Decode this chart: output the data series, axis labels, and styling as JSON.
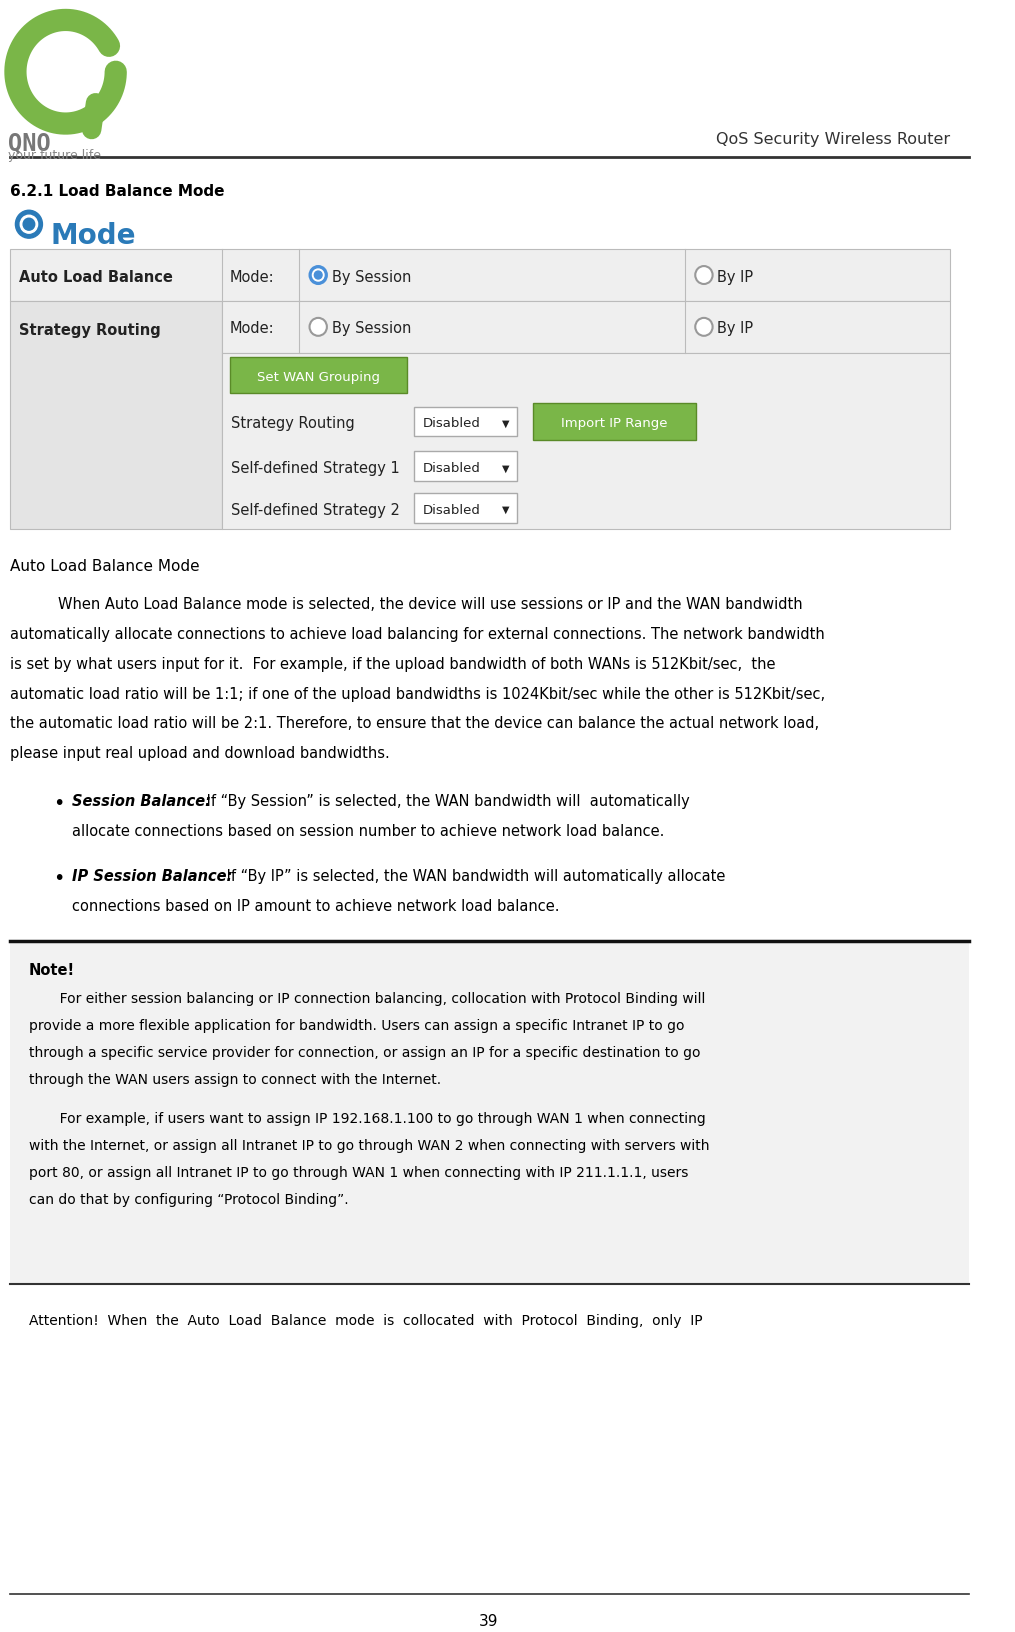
{
  "bg_color": "#ffffff",
  "logo_circle_color": "#7ab648",
  "logo_text_color": "#888888",
  "header_right_text": "QoS Security Wireless Router",
  "section_number": "6.2.1 Load Balance Mode",
  "mode_icon_color": "#2a7ab8",
  "mode_title": "Mode",
  "mode_title_color": "#2a7ab8",
  "table_border_color": "#bbbbbb",
  "table_bg_light": "#efefef",
  "table_bg_mid": "#e4e4e4",
  "table_text_color": "#222222",
  "green_button_color": "#7ab648",
  "green_button_text": "#ffffff",
  "radio_selected_color": "#4a90d9",
  "radio_unselected_color": "#999999",
  "body_text_color": "#000000",
  "page_number": "39",
  "set_wan_btn": "Set WAN Grouping",
  "strategy_routing_label": "Strategy Routing",
  "strategy_routing_value": "Disabled",
  "import_ip_btn": "Import IP Range",
  "self_defined_1_label": "Self-defined Strategy 1",
  "self_defined_1_value": "Disabled",
  "self_defined_2_label": "Self-defined Strategy 2",
  "self_defined_2_value": "Disabled",
  "auto_load_balance_heading": "Auto Load Balance Mode",
  "note_title": "Note!",
  "attention_text": "Attention!  When  the  Auto  Load  Balance  mode  is  collocated  with  Protocol  Binding,  only  IP"
}
